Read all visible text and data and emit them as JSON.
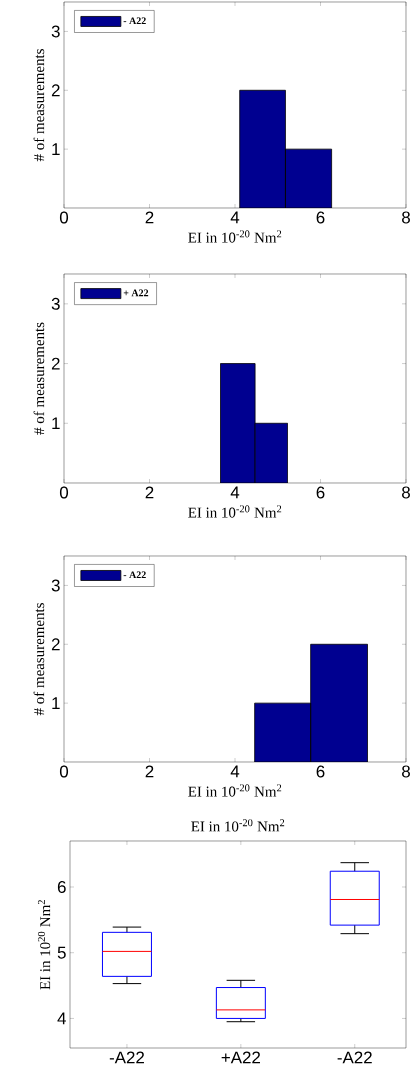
{
  "chart_data": [
    {
      "type": "histogram",
      "xlabel": "EI in 10$^{-20}$ Nm$^{2}$",
      "ylabel": "# of measurements",
      "bins": [
        4.11,
        5.18,
        6.26
      ],
      "series": [
        {
          "name": "- A22",
          "color": "#000090",
          "values": [
            2,
            1
          ]
        }
      ],
      "xlim": [
        0,
        8
      ],
      "ylim": [
        0,
        3.5
      ],
      "xticks": [
        0,
        2,
        4,
        6,
        8
      ],
      "yticks": [
        1,
        2,
        3
      ],
      "legend": "top left"
    },
    {
      "type": "histogram",
      "xlabel": "EI in 10$^{-20}$ Nm$^{2}$",
      "ylabel": "# of measurements",
      "bins": [
        3.66,
        4.47,
        5.23
      ],
      "series": [
        {
          "name": "+ A22",
          "color": "#000090",
          "values": [
            2,
            1
          ]
        }
      ],
      "xlim": [
        0,
        8
      ],
      "ylim": [
        0,
        3.5
      ],
      "xticks": [
        0,
        2,
        4,
        6,
        8
      ],
      "yticks": [
        1,
        2,
        3
      ],
      "legend": "top left"
    },
    {
      "type": "histogram",
      "xlabel": "EI in 10$^{-20}$ Nm$^{2}$",
      "ylabel": "# of measurements",
      "bins": [
        4.46,
        5.77,
        7.1
      ],
      "series": [
        {
          "name": "- A22",
          "color": "#000090",
          "values": [
            1,
            2
          ]
        }
      ],
      "xlim": [
        0,
        8
      ],
      "ylim": [
        0,
        3.5
      ],
      "xticks": [
        0,
        2,
        4,
        6,
        8
      ],
      "yticks": [
        1,
        2,
        3
      ],
      "legend": "top left"
    },
    {
      "type": "box",
      "title": "EI in 10$^{-20}$ Nm$^{2}$",
      "ylabel": "EI in 10$^{20}$ Nm$^{2}$",
      "categories": [
        "-A22",
        "+A22",
        "-A22"
      ],
      "series": [
        {
          "color": "#0000ff",
          "boxes": [
            {
              "low": 4.53,
              "q1": 4.64,
              "median": 5.02,
              "q3": 5.31,
              "high": 5.39
            },
            {
              "low": 3.95,
              "q1": 4.0,
              "median": 4.13,
              "q3": 4.47,
              "high": 4.58
            },
            {
              "low": 5.29,
              "q1": 5.42,
              "median": 5.81,
              "q3": 6.24,
              "high": 6.37
            }
          ]
        }
      ],
      "ylim": [
        3.55,
        6.7
      ],
      "yticks": [
        4,
        5,
        6
      ]
    }
  ]
}
